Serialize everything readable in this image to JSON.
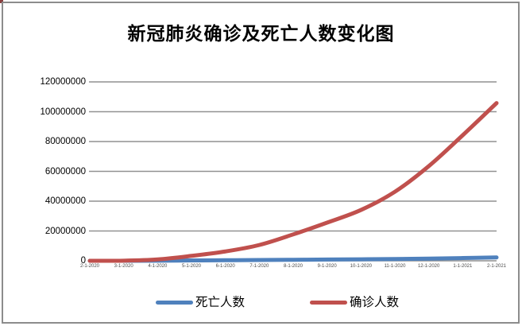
{
  "title": "新冠肺炎确诊及死亡人数变化图",
  "frame": {
    "border_color": "#8C8C8C",
    "background": "#FFFFFF",
    "corner_artifact_color": "#8B3E3E"
  },
  "colors": {
    "deaths_line": "#4F81BD",
    "confirmed_line": "#C0504D",
    "gridline": "#919191"
  },
  "legend": [
    {
      "label": "死亡人数",
      "color": "#4F81BD"
    },
    {
      "label": "确诊人数",
      "color": "#C0504D"
    }
  ],
  "chart_data": {
    "type": "line",
    "title": "新冠肺炎确诊及死亡人数变化图",
    "categories": [
      "2-1-2020",
      "3-1-2020",
      "4-1-2020",
      "5-1-2020",
      "6-1-2020",
      "7-1-2020",
      "8-1-2020",
      "9-1-2020",
      "10-1-2020",
      "11-1-2020",
      "12-1-2020",
      "1-1-2021",
      "2-1-2021"
    ],
    "series": [
      {
        "name": "死亡人数",
        "color": "#4F81BD",
        "values": [
          259,
          3000,
          47000,
          238000,
          375000,
          516000,
          681000,
          855000,
          1020000,
          1200000,
          1470000,
          1840000,
          2250000
        ]
      },
      {
        "name": "确诊人数",
        "color": "#C0504D",
        "values": [
          12000,
          88000,
          930000,
          3310000,
          6270000,
          10600000,
          17700000,
          25600000,
          34100000,
          46300000,
          63500000,
          84200000,
          105800000
        ]
      }
    ],
    "ylim": [
      0,
      120000000
    ],
    "yticks": [
      0,
      20000000,
      40000000,
      60000000,
      80000000,
      100000000,
      120000000
    ],
    "grid": "horizontal",
    "legend_position": "bottom",
    "line_smooth": true
  }
}
